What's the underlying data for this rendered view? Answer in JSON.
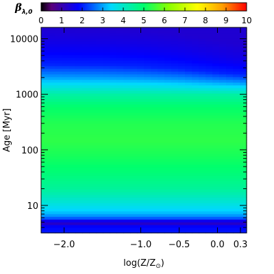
{
  "chart_data": {
    "type": "heatmap",
    "xlabel": {
      "text": "log(Z/Z",
      "sub": "⊙",
      "close": ")"
    },
    "ylabel": {
      "text": "Age ",
      "unit": "[Myr]"
    },
    "colorbar": {
      "label": "β",
      "label_sub": "λ,0",
      "range": [
        0,
        10
      ],
      "ticks": [
        0,
        1,
        2,
        3,
        4,
        5,
        6,
        7,
        8,
        9,
        10
      ],
      "tick_labels": [
        "0",
        "1",
        "2",
        "3",
        "4",
        "5",
        "6",
        "7",
        "8",
        "9",
        "10"
      ],
      "colormap": "rainbow",
      "colormap_stops": [
        "#000000",
        "#5a007a",
        "#0000ff",
        "#00d8ff",
        "#00ff6c",
        "#88ff00",
        "#ffff00",
        "#ffa000",
        "#ff0000"
      ],
      "colormap_positions": [
        0.0,
        0.05,
        0.18,
        0.34,
        0.5,
        0.62,
        0.76,
        0.88,
        1.0
      ]
    },
    "x_axis": {
      "range": [
        -2.3,
        0.38
      ],
      "ticks": [
        -2.0,
        -1.0,
        -0.5,
        0.0,
        0.3
      ],
      "tick_labels": [
        "−2.0",
        "−1.0",
        "−0.5",
        "0.0",
        "0.3"
      ]
    },
    "y_axis": {
      "scale": "log",
      "range": [
        3.2,
        16000
      ],
      "ticks": [
        10,
        100,
        1000,
        10000
      ],
      "tick_labels": [
        "10",
        "100",
        "1000",
        "10000"
      ]
    },
    "age_profile": {
      "ages": [
        3.2,
        4.2,
        4.8,
        5.3,
        6,
        7,
        9,
        12,
        20,
        40,
        80,
        150,
        300,
        600,
        1000,
        2000,
        3500,
        6000,
        9000,
        16000
      ],
      "beta": [
        2.0,
        1.8,
        1.25,
        1.6,
        2.5,
        3.1,
        3.5,
        3.9,
        4.5,
        4.9,
        5.2,
        5.4,
        5.3,
        5.0,
        4.4,
        3.0,
        2.05,
        1.75,
        1.55,
        1.35
      ]
    },
    "metallicity_shift": {
      "logZ": [
        -2.3,
        -1.5,
        -1.0,
        -0.5,
        0.0,
        0.38
      ],
      "age_scale": [
        1.0,
        0.97,
        0.9,
        0.78,
        0.6,
        0.48
      ]
    }
  }
}
